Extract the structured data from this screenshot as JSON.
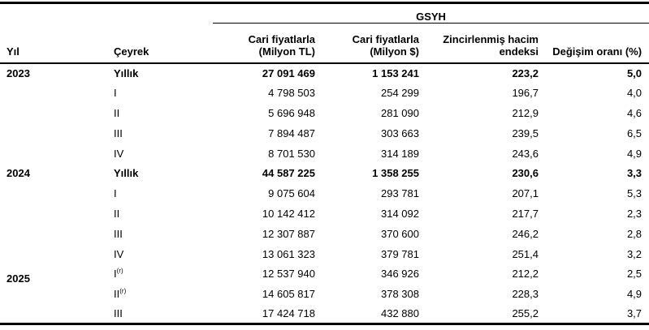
{
  "chart_data": {
    "type": "table",
    "group_header": "GSYH",
    "headers": {
      "year": "Yıl",
      "quarter": "Çeyrek",
      "cols": [
        {
          "line1": "Cari fiyatlarla",
          "line2": "(Milyon TL)"
        },
        {
          "line1": "Cari fiyatlarla",
          "line2": "(Milyon $)"
        },
        {
          "line1": "Zincirlenmiş hacim",
          "line2": "endeksi"
        },
        {
          "line1": "",
          "line2": "Değişim oranı (%)"
        }
      ]
    },
    "rows": [
      {
        "year": "2023",
        "quarter": "Yıllık",
        "sup": "",
        "bold": true,
        "year_nudge": false,
        "values": [
          "27 091 469",
          "1 153 241",
          "223,2",
          "5,0"
        ]
      },
      {
        "year": "",
        "quarter": "I",
        "sup": "",
        "bold": false,
        "year_nudge": false,
        "values": [
          "4 798 503",
          "254 299",
          "196,7",
          "4,0"
        ]
      },
      {
        "year": "",
        "quarter": "II",
        "sup": "",
        "bold": false,
        "year_nudge": false,
        "values": [
          "5 696 948",
          "281 090",
          "212,9",
          "4,6"
        ]
      },
      {
        "year": "",
        "quarter": "III",
        "sup": "",
        "bold": false,
        "year_nudge": false,
        "values": [
          "7 894 487",
          "303 663",
          "239,5",
          "6,5"
        ]
      },
      {
        "year": "",
        "quarter": "IV",
        "sup": "",
        "bold": false,
        "year_nudge": false,
        "values": [
          "8 701 530",
          "314 189",
          "243,6",
          "4,9"
        ]
      },
      {
        "year": "2024",
        "quarter": "Yıllık",
        "sup": "",
        "bold": true,
        "year_nudge": false,
        "values": [
          "44 587 225",
          "1 358 255",
          "230,6",
          "3,3"
        ]
      },
      {
        "year": "",
        "quarter": "I",
        "sup": "",
        "bold": false,
        "year_nudge": false,
        "values": [
          "9 075 604",
          "293 781",
          "207,1",
          "5,3"
        ]
      },
      {
        "year": "",
        "quarter": "II",
        "sup": "",
        "bold": false,
        "year_nudge": false,
        "values": [
          "10 142 412",
          "314 092",
          "217,7",
          "2,3"
        ]
      },
      {
        "year": "",
        "quarter": "III",
        "sup": "",
        "bold": false,
        "year_nudge": false,
        "values": [
          "12 307 887",
          "370 600",
          "246,2",
          "2,8"
        ]
      },
      {
        "year": "",
        "quarter": "IV",
        "sup": "",
        "bold": false,
        "year_nudge": false,
        "values": [
          "13 061 323",
          "379 781",
          "251,4",
          "3,2"
        ]
      },
      {
        "year": "2025",
        "quarter": "I",
        "sup": "(r)",
        "bold": false,
        "year_nudge": true,
        "values": [
          "12 537 940",
          "346 926",
          "212,2",
          "2,5"
        ]
      },
      {
        "year": "",
        "quarter": "II",
        "sup": "(r)",
        "bold": false,
        "year_nudge": false,
        "values": [
          "14 605 817",
          "378 308",
          "228,3",
          "4,9"
        ]
      },
      {
        "year": "",
        "quarter": "III",
        "sup": "",
        "bold": false,
        "year_nudge": false,
        "values": [
          "17 424 718",
          "432 880",
          "255,2",
          "3,7"
        ]
      }
    ]
  }
}
